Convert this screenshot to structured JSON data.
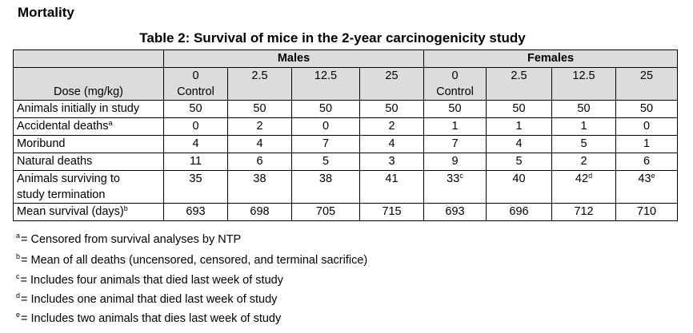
{
  "heading": "Mortality",
  "table_title": "Table 2: Survival of mice in the 2-year carcinogenicity study",
  "groups": {
    "males": "Males",
    "females": "Females"
  },
  "dose_label": "Dose (mg/kg)",
  "doses": {
    "m0": "0",
    "m0_sub": "Control",
    "m1": "2.5",
    "m2": "12.5",
    "m3": "25",
    "f0": "0",
    "f0_sub": "Control",
    "f1": "2.5",
    "f2": "12.5",
    "f3": "25"
  },
  "rows": {
    "initial": {
      "label": "Animals initially in study",
      "values": [
        "50",
        "50",
        "50",
        "50",
        "50",
        "50",
        "50",
        "50"
      ]
    },
    "accidental": {
      "label": "Accidental deaths",
      "sup": "a",
      "values": [
        "0",
        "2",
        "0",
        "2",
        "1",
        "1",
        "1",
        "0"
      ]
    },
    "moribund": {
      "label": "Moribund",
      "values": [
        "4",
        "4",
        "7",
        "4",
        "7",
        "4",
        "5",
        "1"
      ]
    },
    "natural": {
      "label": "Natural deaths",
      "values": [
        "11",
        "6",
        "5",
        "3",
        "9",
        "5",
        "2",
        "6"
      ]
    },
    "surviving": {
      "label1": "Animals surviving to",
      "label2": "study termination",
      "values": [
        "35",
        "38",
        "38",
        "41",
        "33",
        "40",
        "42",
        "43"
      ],
      "sups": {
        "f0": "c",
        "f2": "d",
        "f3": "e"
      }
    },
    "mean": {
      "label": "Mean survival (days)",
      "sup": "b",
      "values": [
        "693",
        "698",
        "705",
        "715",
        "693",
        "696",
        "712",
        "710"
      ]
    }
  },
  "footnotes": {
    "a": {
      "mark": "a",
      "text": "= Censored from survival analyses by NTP"
    },
    "b": {
      "mark": "b",
      "text": "= Mean of all deaths (uncensored, censored, and terminal sacrifice)"
    },
    "c": {
      "mark": "c",
      "text": "= Includes four animals that died last week of study"
    },
    "d": {
      "mark": "d",
      "text": "= Includes one animal that died last week of study"
    },
    "e": {
      "mark": "e",
      "text": "= Includes two animals that dies last week of study"
    }
  }
}
